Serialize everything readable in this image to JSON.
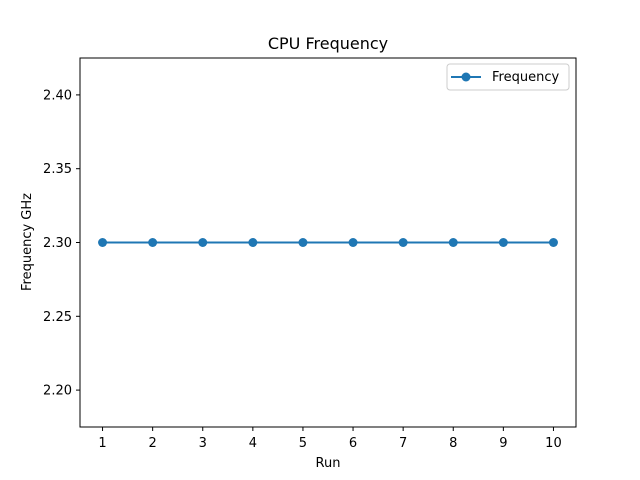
{
  "chart_data": {
    "type": "line",
    "title": "CPU Frequency",
    "xlabel": "Run",
    "ylabel": "Frequency GHz",
    "x": [
      1,
      2,
      3,
      4,
      5,
      6,
      7,
      8,
      9,
      10
    ],
    "xticks": [
      1,
      2,
      3,
      4,
      5,
      6,
      7,
      8,
      9,
      10
    ],
    "xlim": [
      0.55,
      10.45
    ],
    "yticks": [
      2.2,
      2.25,
      2.3,
      2.35,
      2.4
    ],
    "ylim": [
      2.175,
      2.425
    ],
    "series": [
      {
        "name": "Frequency",
        "values": [
          2.3,
          2.3,
          2.3,
          2.3,
          2.3,
          2.3,
          2.3,
          2.3,
          2.3,
          2.3
        ],
        "color": "#1f77b4",
        "marker": "circle"
      }
    ],
    "legend": {
      "position": "top-right"
    },
    "grid": false
  }
}
